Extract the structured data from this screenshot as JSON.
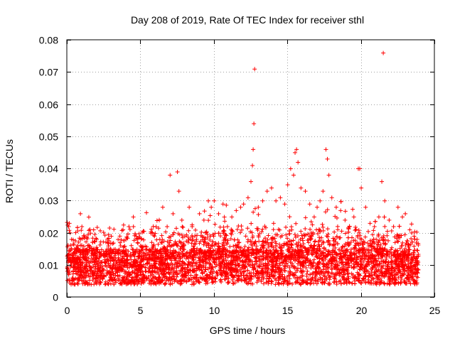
{
  "chart_data": {
    "type": "scatter",
    "title": "Day 208 of 2019, Rate Of TEC Index for receiver sthl",
    "xlabel": "GPS time / hours",
    "ylabel": "ROTI / TECUs",
    "xlim": [
      0,
      25
    ],
    "ylim": [
      0,
      0.08
    ],
    "xticks": [
      0,
      5,
      10,
      15,
      20,
      25
    ],
    "yticks": [
      0,
      0.01,
      0.02,
      0.03,
      0.04,
      0.05,
      0.06,
      0.07,
      0.08
    ],
    "xtick_labels": [
      "0",
      "5",
      "10",
      "15",
      "20",
      "25"
    ],
    "ytick_labels": [
      "0",
      "0.01",
      "0.02",
      "0.03",
      "0.04",
      "0.05",
      "0.06",
      "0.07",
      "0.08"
    ],
    "grid": true,
    "marker": "plus",
    "color": "#ff0000",
    "series": [
      {
        "name": "sthl",
        "points": [
          [
            0.1,
            0.022
          ],
          [
            0.15,
            0.023
          ],
          [
            0.3,
            0.018
          ],
          [
            0.5,
            0.012
          ],
          [
            0.7,
            0.016
          ],
          [
            0.9,
            0.026
          ],
          [
            1.0,
            0.022
          ],
          [
            1.2,
            0.019
          ],
          [
            1.5,
            0.015
          ],
          [
            1.8,
            0.021
          ],
          [
            2.0,
            0.018
          ],
          [
            2.2,
            0.014
          ],
          [
            2.5,
            0.013
          ],
          [
            2.8,
            0.016
          ],
          [
            3.0,
            0.019
          ],
          [
            3.3,
            0.012
          ],
          [
            3.6,
            0.017
          ],
          [
            3.8,
            0.021
          ],
          [
            4.0,
            0.018
          ],
          [
            4.2,
            0.022
          ],
          [
            4.5,
            0.025
          ],
          [
            4.7,
            0.019
          ],
          [
            5.0,
            0.016
          ],
          [
            5.3,
            0.013
          ],
          [
            5.6,
            0.012
          ],
          [
            6.0,
            0.015
          ],
          [
            6.3,
            0.018
          ],
          [
            6.5,
            0.028
          ],
          [
            6.8,
            0.022
          ],
          [
            7.0,
            0.038
          ],
          [
            7.2,
            0.026
          ],
          [
            7.5,
            0.039
          ],
          [
            7.6,
            0.033
          ],
          [
            7.8,
            0.024
          ],
          [
            8.0,
            0.019
          ],
          [
            8.3,
            0.028
          ],
          [
            8.5,
            0.022
          ],
          [
            8.8,
            0.018
          ],
          [
            9.0,
            0.026
          ],
          [
            9.3,
            0.024
          ],
          [
            9.6,
            0.03
          ],
          [
            9.8,
            0.028
          ],
          [
            10.0,
            0.03
          ],
          [
            10.3,
            0.026
          ],
          [
            10.6,
            0.029
          ],
          [
            10.9,
            0.022
          ],
          [
            11.2,
            0.025
          ],
          [
            11.5,
            0.027
          ],
          [
            11.8,
            0.028
          ],
          [
            12.0,
            0.029
          ],
          [
            12.3,
            0.031
          ],
          [
            12.5,
            0.036
          ],
          [
            12.6,
            0.041
          ],
          [
            12.65,
            0.046
          ],
          [
            12.7,
            0.054
          ],
          [
            12.75,
            0.071
          ],
          [
            13.0,
            0.028
          ],
          [
            13.3,
            0.03
          ],
          [
            13.6,
            0.033
          ],
          [
            13.9,
            0.034
          ],
          [
            14.2,
            0.03
          ],
          [
            14.5,
            0.031
          ],
          [
            14.8,
            0.029
          ],
          [
            15.0,
            0.035
          ],
          [
            15.2,
            0.04
          ],
          [
            15.4,
            0.038
          ],
          [
            15.5,
            0.045
          ],
          [
            15.6,
            0.046
          ],
          [
            15.7,
            0.042
          ],
          [
            15.9,
            0.034
          ],
          [
            16.2,
            0.033
          ],
          [
            16.5,
            0.029
          ],
          [
            16.8,
            0.025
          ],
          [
            17.0,
            0.028
          ],
          [
            17.2,
            0.03
          ],
          [
            17.4,
            0.033
          ],
          [
            17.6,
            0.046
          ],
          [
            17.7,
            0.043
          ],
          [
            17.8,
            0.038
          ],
          [
            18.0,
            0.031
          ],
          [
            18.3,
            0.028
          ],
          [
            18.6,
            0.027
          ],
          [
            18.9,
            0.024
          ],
          [
            19.2,
            0.022
          ],
          [
            19.5,
            0.025
          ],
          [
            19.8,
            0.04
          ],
          [
            19.9,
            0.04
          ],
          [
            20.0,
            0.034
          ],
          [
            20.3,
            0.028
          ],
          [
            20.6,
            0.023
          ],
          [
            20.9,
            0.022
          ],
          [
            21.2,
            0.025
          ],
          [
            21.4,
            0.036
          ],
          [
            21.5,
            0.076
          ],
          [
            21.6,
            0.03
          ],
          [
            21.9,
            0.024
          ],
          [
            22.2,
            0.022
          ],
          [
            22.5,
            0.028
          ],
          [
            22.8,
            0.025
          ],
          [
            23.0,
            0.026
          ],
          [
            23.3,
            0.021
          ],
          [
            23.6,
            0.019
          ],
          [
            23.8,
            0.018
          ]
        ]
      }
    ]
  }
}
